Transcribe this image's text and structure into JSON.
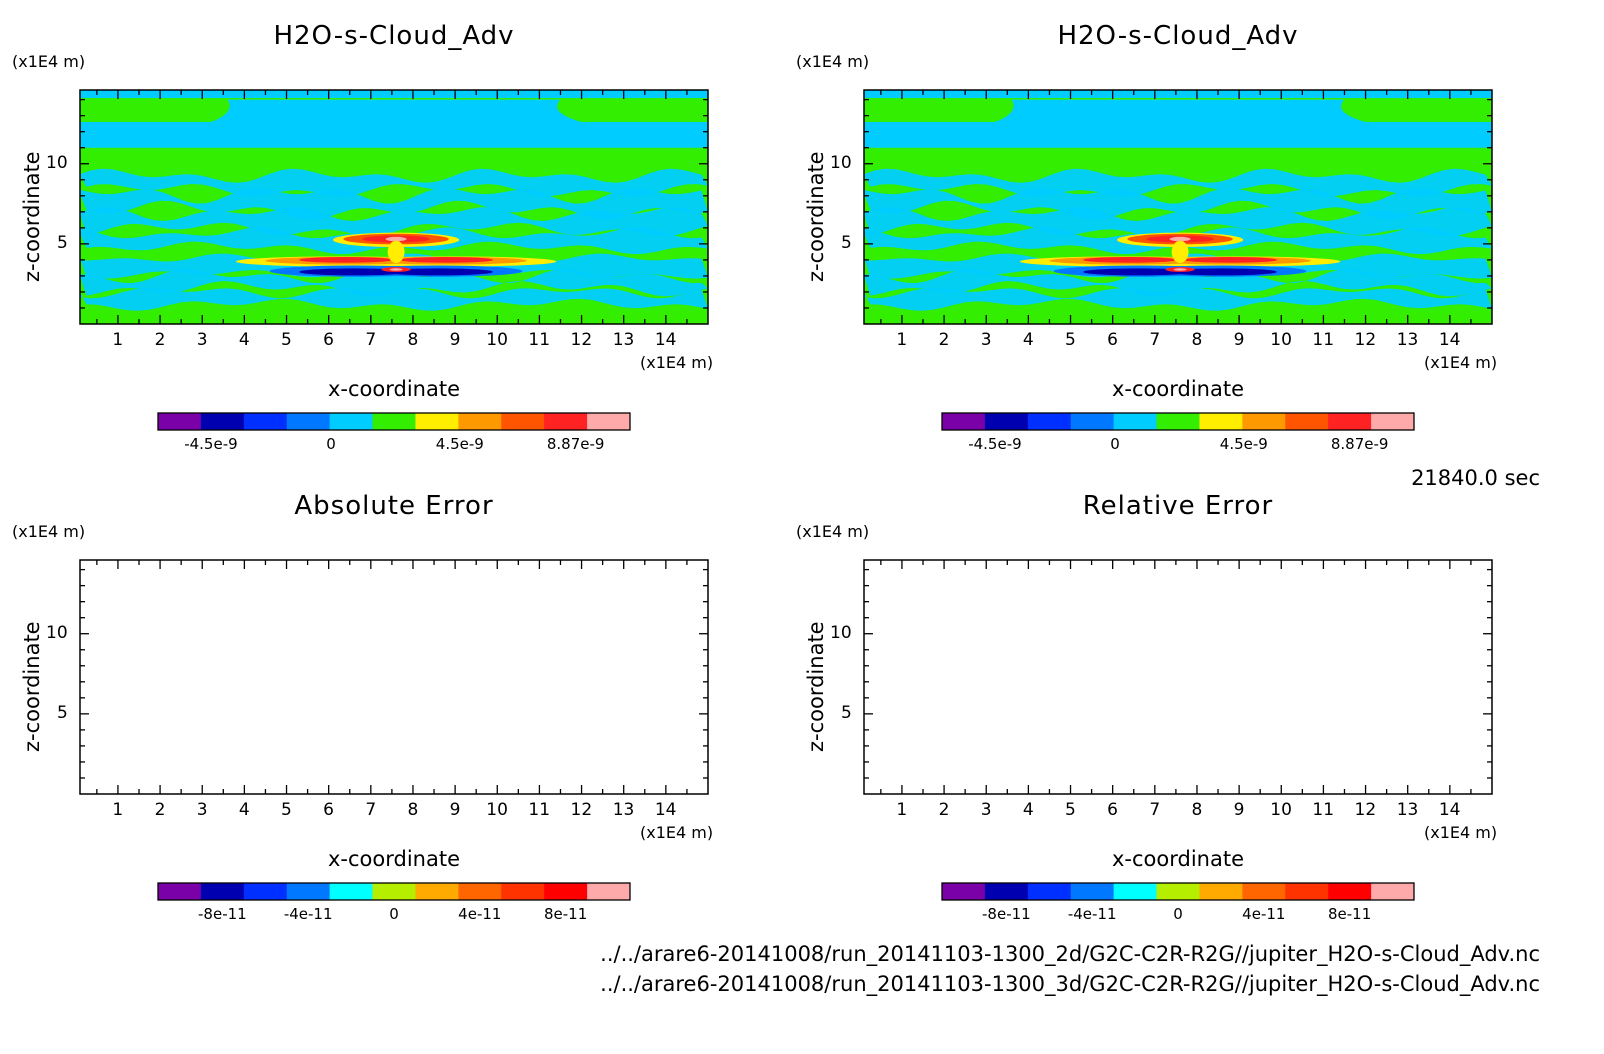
{
  "unit_label": "(x1E4 m)",
  "time": "21840.0 sec",
  "paths": [
    "../../arare6-20141008/run_20141103-1300_2d/G2C-C2R-R2G//jupiter_H2O-s-Cloud_Adv.nc",
    "../../arare6-20141008/run_20141103-1300_3d/G2C-C2R-R2G//jupiter_H2O-s-Cloud_Adv.nc"
  ],
  "colors": {
    "field": [
      "#7a00a8",
      "#0000b0",
      "#0030ff",
      "#0078ff",
      "#00ccff",
      "#33ee00",
      "#ffee00",
      "#ff9900",
      "#ff5500",
      "#ff2222",
      "#ffaaaa"
    ],
    "error": [
      "#7a00a8",
      "#0000b0",
      "#0030ff",
      "#0078ff",
      "#00ffff",
      "#b6ee00",
      "#ffaa00",
      "#ff6600",
      "#ff3300",
      "#ff0000",
      "#ffaaaa"
    ]
  },
  "chart_data": [
    {
      "type": "heatmap",
      "title": "H2O-s-Cloud_Adv",
      "xlabel": "x-coordinate",
      "ylabel": "z-coordinate",
      "xlim": [
        0.1,
        15
      ],
      "ylim": [
        0,
        14.6
      ],
      "xticks": [
        "1",
        "2",
        "3",
        "4",
        "5",
        "6",
        "7",
        "8",
        "9",
        "10",
        "11",
        "12",
        "13",
        "14"
      ],
      "yticks": [
        "5",
        "10"
      ],
      "colorbar": {
        "labels": [
          "-4.5e-9",
          "0",
          "4.5e-9",
          "8.87e-9"
        ]
      },
      "field": "dominant 0 (green) with -1e-9 (cyan) bands; wave structure near x=7.6, z=4 with extremes +8.87e-9 and about -5e-9"
    },
    {
      "type": "heatmap",
      "title": "H2O-s-Cloud_Adv",
      "xlabel": "x-coordinate",
      "ylabel": "z-coordinate",
      "xlim": [
        0.1,
        15
      ],
      "ylim": [
        0,
        14.6
      ],
      "xticks": [
        "1",
        "2",
        "3",
        "4",
        "5",
        "6",
        "7",
        "8",
        "9",
        "10",
        "11",
        "12",
        "13",
        "14"
      ],
      "yticks": [
        "5",
        "10"
      ],
      "colorbar": {
        "labels": [
          "-4.5e-9",
          "0",
          "4.5e-9",
          "8.87e-9"
        ]
      },
      "field": "identical to the 2d run field"
    },
    {
      "type": "heatmap",
      "title": "Absolute Error",
      "xlabel": "x-coordinate",
      "ylabel": "z-coordinate",
      "xlim": [
        0.1,
        15
      ],
      "ylim": [
        0,
        14.6
      ],
      "xticks": [
        "1",
        "2",
        "3",
        "4",
        "5",
        "6",
        "7",
        "8",
        "9",
        "10",
        "11",
        "12",
        "13",
        "14"
      ],
      "yticks": [
        "5",
        "10"
      ],
      "colorbar": {
        "labels": [
          "-8e-11",
          "-4e-11",
          "0",
          "4e-11",
          "8e-11"
        ]
      },
      "field": "empty"
    },
    {
      "type": "heatmap",
      "title": "Relative Error",
      "xlabel": "x-coordinate",
      "ylabel": "z-coordinate",
      "xlim": [
        0.1,
        15
      ],
      "ylim": [
        0,
        14.6
      ],
      "xticks": [
        "1",
        "2",
        "3",
        "4",
        "5",
        "6",
        "7",
        "8",
        "9",
        "10",
        "11",
        "12",
        "13",
        "14"
      ],
      "yticks": [
        "5",
        "10"
      ],
      "colorbar": {
        "labels": [
          "-8e-11",
          "-4e-11",
          "0",
          "4e-11",
          "8e-11"
        ]
      },
      "field": "empty"
    }
  ]
}
